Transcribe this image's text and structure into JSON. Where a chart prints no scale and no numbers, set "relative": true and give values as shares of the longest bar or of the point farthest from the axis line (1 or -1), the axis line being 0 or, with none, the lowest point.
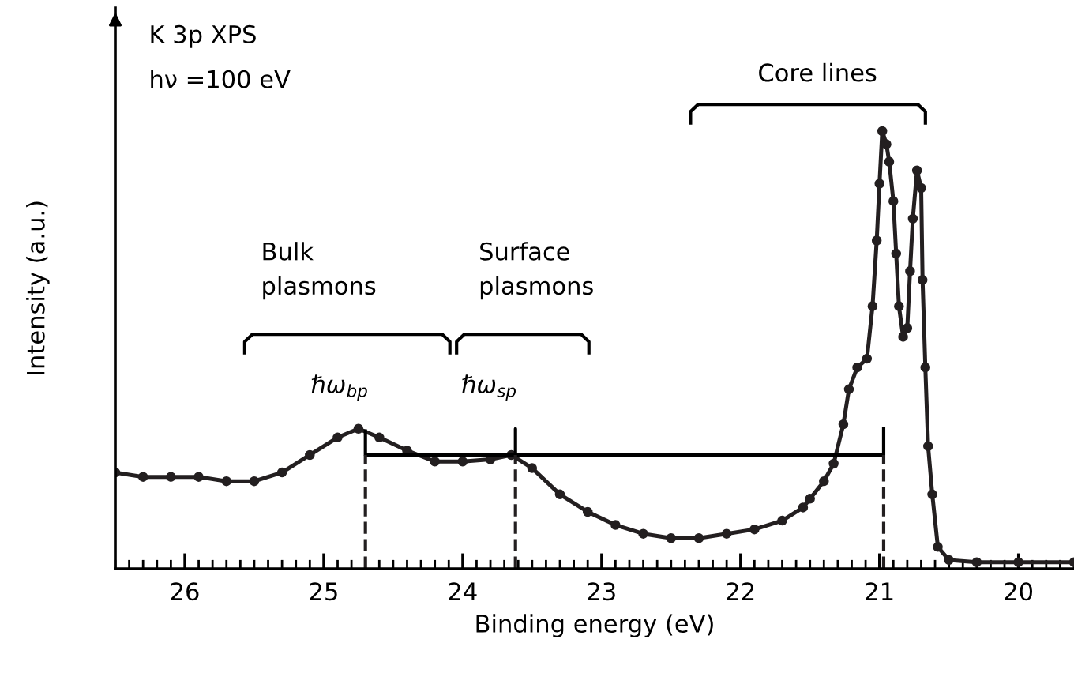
{
  "chart_data": {
    "type": "line",
    "title": "K 3p XPS",
    "subtitle": "hν =100 eV",
    "xlabel": "Binding energy (eV)",
    "ylabel": "Intensity (a.u.)",
    "relative": true,
    "marker": "circle",
    "line_style": "solid",
    "grid": false,
    "xlim": [
      26.5,
      19.6
    ],
    "xticks": [
      26,
      25,
      24,
      23,
      22,
      21,
      20
    ],
    "series": [
      {
        "color": "#231f20",
        "x": [
          26.5,
          26.3,
          26.1,
          25.9,
          25.7,
          25.5,
          25.3,
          25.1,
          24.9,
          24.75,
          24.6,
          24.4,
          24.2,
          24.0,
          23.8,
          23.65,
          23.5,
          23.3,
          23.1,
          22.9,
          22.7,
          22.5,
          22.3,
          22.1,
          21.9,
          21.7,
          21.55,
          21.5,
          21.4,
          21.33,
          21.26,
          21.22,
          21.16,
          21.09,
          21.05,
          21.02,
          21.0,
          20.98,
          20.95,
          20.93,
          20.9,
          20.88,
          20.86,
          20.83,
          20.8,
          20.78,
          20.76,
          20.73,
          20.7,
          20.69,
          20.67,
          20.65,
          20.62,
          20.58,
          20.5,
          20.3,
          20.0,
          19.6
        ],
        "values": [
          0.22,
          0.21,
          0.21,
          0.21,
          0.2,
          0.2,
          0.22,
          0.26,
          0.3,
          0.32,
          0.3,
          0.27,
          0.245,
          0.245,
          0.25,
          0.26,
          0.23,
          0.17,
          0.13,
          0.1,
          0.08,
          0.07,
          0.07,
          0.08,
          0.09,
          0.11,
          0.14,
          0.16,
          0.2,
          0.24,
          0.33,
          0.41,
          0.46,
          0.48,
          0.6,
          0.75,
          0.88,
          1.0,
          0.97,
          0.93,
          0.84,
          0.72,
          0.6,
          0.53,
          0.55,
          0.68,
          0.8,
          0.91,
          0.87,
          0.66,
          0.46,
          0.28,
          0.17,
          0.05,
          0.02,
          0.015,
          0.015,
          0.015
        ]
      },
      {
        "type": "line",
        "color": "#000000",
        "marker": "none",
        "x": [
          24.7,
          24.7,
          23.62,
          23.62,
          23.62,
          20.97,
          20.97
        ],
        "values": [
          0.315,
          0.26,
          0.26,
          0.32,
          0.26,
          0.26,
          0.32
        ]
      }
    ],
    "ref_lines": [
      {
        "axis": "x",
        "value": 24.7,
        "line_style": "dashed",
        "color": "#231f20"
      },
      {
        "axis": "x",
        "value": 23.62,
        "line_style": "dashed",
        "color": "#231f20"
      },
      {
        "axis": "x",
        "value": 20.97,
        "line_style": "dashed",
        "color": "#231f20"
      }
    ],
    "annotations": [
      "Bulk\nplasmons",
      "Surface\nplasmons",
      "Core lines",
      "ℏω$_{bp}$",
      "ℏω$_{sp}$"
    ]
  }
}
